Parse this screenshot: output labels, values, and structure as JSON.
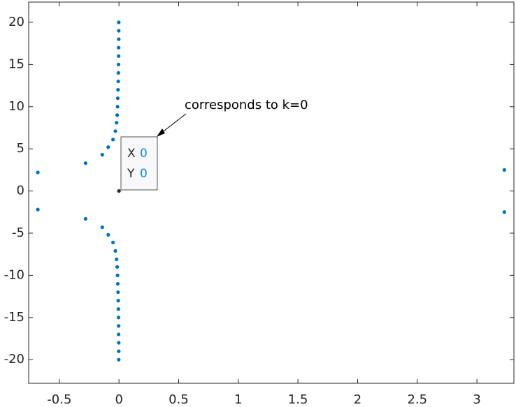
{
  "chart_data": {
    "type": "scatter",
    "xlim": [
      -0.757,
      3.31
    ],
    "ylim": [
      -22.8,
      22.4
    ],
    "xticks": [
      -0.5,
      0,
      0.5,
      1,
      1.5,
      2,
      2.5,
      3
    ],
    "yticks": [
      -20,
      -15,
      -10,
      -5,
      0,
      5,
      10,
      15,
      20
    ],
    "grid": false,
    "series": [
      {
        "color": "#0072bd",
        "x": [
          -0.68,
          -0.28,
          -0.14,
          -0.09,
          -0.05,
          -0.03,
          -0.02,
          -0.015,
          -0.012,
          -0.01,
          -0.008,
          -0.006,
          -0.005,
          -0.004,
          -0.003,
          -0.003,
          -0.002,
          -0.002,
          -0.002,
          3.23,
          -0.68,
          -0.28,
          -0.14,
          -0.09,
          -0.05,
          -0.03,
          -0.02,
          -0.015,
          -0.012,
          -0.01,
          -0.008,
          -0.006,
          -0.005,
          -0.004,
          -0.003,
          -0.003,
          -0.002,
          -0.002,
          -0.002,
          3.23
        ],
        "y": [
          2.2,
          3.3,
          4.3,
          5.2,
          6.1,
          7.1,
          8.1,
          9,
          10,
          11,
          12,
          13,
          14,
          15,
          16,
          17,
          18,
          19,
          20,
          2.5,
          -2.2,
          -3.3,
          -4.3,
          -5.2,
          -6.1,
          -7.1,
          -8.1,
          -9,
          -10,
          -11,
          -12,
          -13,
          -14,
          -15,
          -16,
          -17,
          -18,
          -19,
          -20,
          -2.5
        ]
      },
      {
        "color": "#262626",
        "x": [
          0
        ],
        "y": [
          0
        ]
      }
    ],
    "datatip": {
      "x_label": "X",
      "x_value": 0,
      "y_label": "Y",
      "y_value": 0
    },
    "annotation": "corresponds to k=0"
  }
}
